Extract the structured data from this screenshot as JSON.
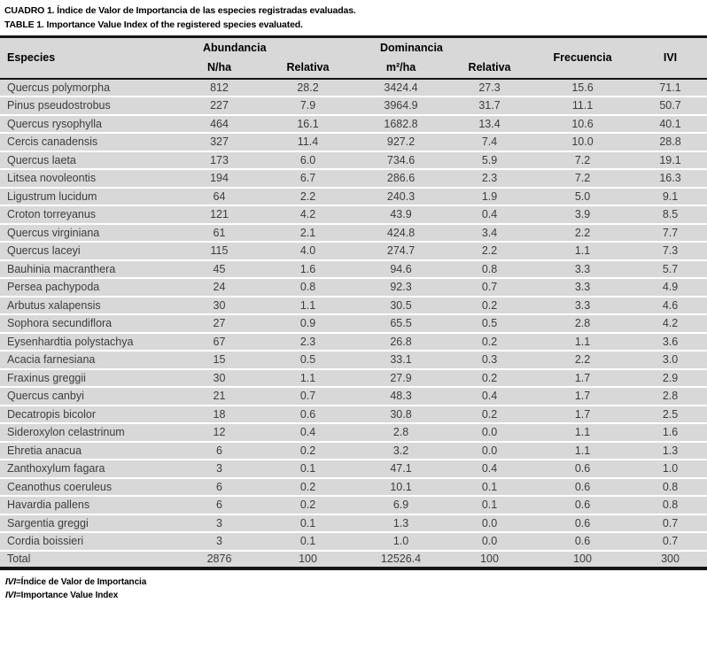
{
  "captions": {
    "es": "CUADRO 1. Índice de Valor de Importancia de las especies registradas evaluadas.",
    "en": "TABLE 1. Importance Value Index of the registered species evaluated."
  },
  "table": {
    "headers": {
      "especies": "Especies",
      "abundancia": "Abundancia",
      "dominancia": "Dominancia",
      "n_ha": "N/ha",
      "relativa_abund": "Relativa",
      "m2_ha": "m²/ha",
      "relativa_dom": "Relativa",
      "frecuencia": "Frecuencia",
      "ivi": "IVI"
    },
    "rows": [
      [
        "Quercus polymorpha",
        "812",
        "28.2",
        "3424.4",
        "27.3",
        "15.6",
        "71.1"
      ],
      [
        "Pinus pseudostrobus",
        "227",
        "7.9",
        "3964.9",
        "31.7",
        "11.1",
        "50.7"
      ],
      [
        "Quercus rysophylla",
        "464",
        "16.1",
        "1682.8",
        "13.4",
        "10.6",
        "40.1"
      ],
      [
        "Cercis canadensis",
        "327",
        "11.4",
        "927.2",
        "7.4",
        "10.0",
        "28.8"
      ],
      [
        "Quercus laeta",
        "173",
        "6.0",
        "734.6",
        "5.9",
        "7.2",
        "19.1"
      ],
      [
        "Litsea novoleontis",
        "194",
        "6.7",
        "286.6",
        "2.3",
        "7.2",
        "16.3"
      ],
      [
        "Ligustrum lucidum",
        "64",
        "2.2",
        "240.3",
        "1.9",
        "5.0",
        "9.1"
      ],
      [
        "Croton torreyanus",
        "121",
        "4.2",
        "43.9",
        "0.4",
        "3.9",
        "8.5"
      ],
      [
        "Quercus virginiana",
        "61",
        "2.1",
        "424.8",
        "3.4",
        "2.2",
        "7.7"
      ],
      [
        "Quercus laceyi",
        "115",
        "4.0",
        "274.7",
        "2.2",
        "1.1",
        "7.3"
      ],
      [
        "Bauhinia macranthera",
        "45",
        "1.6",
        "94.6",
        "0.8",
        "3.3",
        "5.7"
      ],
      [
        "Persea pachypoda",
        "24",
        "0.8",
        "92.3",
        "0.7",
        "3.3",
        "4.9"
      ],
      [
        "Arbutus xalapensis",
        "30",
        "1.1",
        "30.5",
        "0.2",
        "3.3",
        "4.6"
      ],
      [
        "Sophora secundiflora",
        "27",
        "0.9",
        "65.5",
        "0.5",
        "2.8",
        "4.2"
      ],
      [
        "Eysenhardtia polystachya",
        "67",
        "2.3",
        "26.8",
        "0.2",
        "1.1",
        "3.6"
      ],
      [
        "Acacia farnesiana",
        "15",
        "0.5",
        "33.1",
        "0.3",
        "2.2",
        "3.0"
      ],
      [
        "Fraxinus greggii",
        "30",
        "1.1",
        "27.9",
        "0.2",
        "1.7",
        "2.9"
      ],
      [
        "Quercus canbyi",
        "21",
        "0.7",
        "48.3",
        "0.4",
        "1.7",
        "2.8"
      ],
      [
        "Decatropis bicolor",
        "18",
        "0.6",
        "30.8",
        "0.2",
        "1.7",
        "2.5"
      ],
      [
        "Sideroxylon celastrinum",
        "12",
        "0.4",
        "2.8",
        "0.0",
        "1.1",
        "1.6"
      ],
      [
        "Ehretia anacua",
        "6",
        "0.2",
        "3.2",
        "0.0",
        "1.1",
        "1.3"
      ],
      [
        "Zanthoxylum fagara",
        "3",
        "0.1",
        "47.1",
        "0.4",
        "0.6",
        "1.0"
      ],
      [
        "Ceanothus coeruleus",
        "6",
        "0.2",
        "10.1",
        "0.1",
        "0.6",
        "0.8"
      ],
      [
        "Havardia pallens",
        "6",
        "0.2",
        "6.9",
        "0.1",
        "0.6",
        "0.8"
      ],
      [
        "Sargentia greggi",
        "3",
        "0.1",
        "1.3",
        "0.0",
        "0.6",
        "0.7"
      ],
      [
        "Cordia boissieri",
        "3",
        "0.1",
        "1.0",
        "0.0",
        "0.6",
        "0.7"
      ]
    ],
    "total": [
      "Total",
      "2876",
      "100",
      "12526.4",
      "100",
      "100",
      "300"
    ]
  },
  "footnotes": [
    {
      "abbr": "IVI",
      "text": "=Índice de Valor de Importancia"
    },
    {
      "abbr": "IVI",
      "text": "=Importance Value Index"
    }
  ],
  "colors": {
    "row_bg": "#d8d8d8",
    "rule": "#141414",
    "separator": "#ffffff",
    "body_text": "#3d3d3d",
    "heading_text": "#000000",
    "page_bg": "#ffffff"
  }
}
